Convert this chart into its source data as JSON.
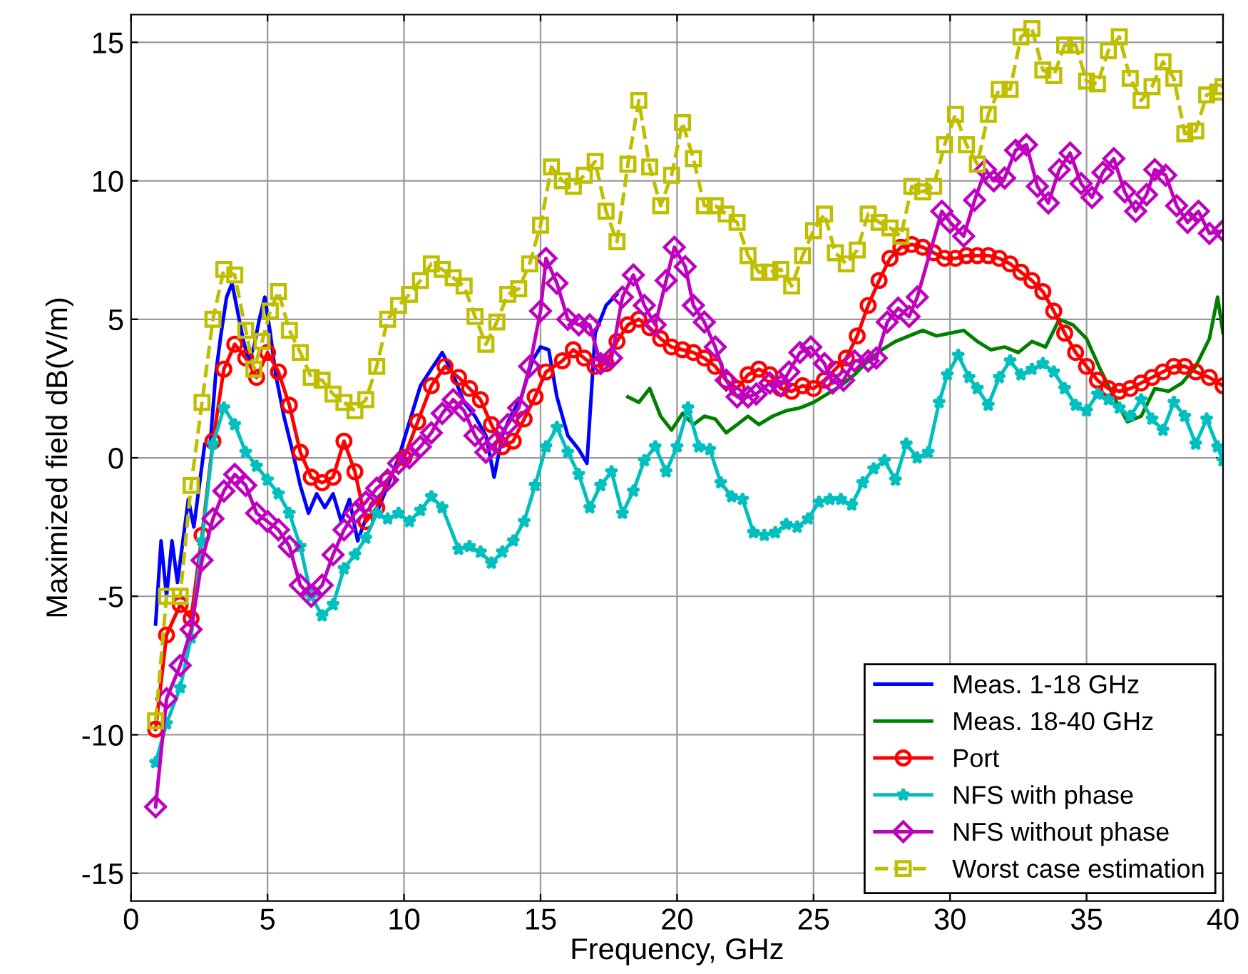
{
  "chart_data": {
    "type": "line",
    "xlabel": "Frequency, GHz",
    "ylabel": "Maximized field dB(V/m)",
    "xlim": [
      0,
      40
    ],
    "ylim": [
      -16,
      16
    ],
    "xticks": [
      0,
      5,
      10,
      15,
      20,
      25,
      30,
      35,
      40
    ],
    "yticks": [
      -15,
      -10,
      -5,
      0,
      5,
      10,
      15
    ],
    "grid": true,
    "legend": "bottom right",
    "series": [
      {
        "name": "Meas. 1-18 GHz",
        "color": "#0000ff",
        "marker": "none",
        "line_style": "solid",
        "x": [
          0.9,
          1.1,
          1.3,
          1.5,
          1.7,
          1.9,
          2.1,
          2.3,
          2.5,
          2.7,
          2.9,
          3.1,
          3.3,
          3.5,
          3.7,
          3.9,
          4.1,
          4.3,
          4.5,
          4.7,
          4.9,
          5.1,
          5.3,
          5.6,
          5.9,
          6.2,
          6.5,
          6.8,
          7.1,
          7.4,
          7.7,
          8.0,
          8.3,
          8.6,
          9.0,
          9.4,
          9.8,
          10.2,
          10.6,
          11.0,
          11.4,
          11.8,
          12.2,
          12.6,
          13.0,
          13.3,
          13.6,
          13.9,
          14.3,
          14.7,
          15.0,
          15.3,
          15.6,
          16.0,
          16.4,
          16.7,
          17.0,
          17.4,
          17.8
        ],
        "values": [
          -6,
          -3,
          -5,
          -3,
          -4.5,
          -3,
          -1.5,
          -2.5,
          -1,
          0.5,
          0.5,
          3,
          4.5,
          5.8,
          6.3,
          5.3,
          4.3,
          3.5,
          4,
          5,
          5.8,
          4.5,
          3,
          1.5,
          0.3,
          -1,
          -2,
          -1.3,
          -1.8,
          -1.3,
          -2.3,
          -1.5,
          -3,
          -2.2,
          -2,
          -1,
          0,
          1.3,
          2.6,
          3.2,
          3.8,
          3,
          2,
          1.5,
          0.8,
          -0.7,
          0.8,
          1.5,
          2.2,
          3.5,
          4,
          3.9,
          2.2,
          0.8,
          0.3,
          -0.2,
          4.5,
          5.5,
          5.9
        ]
      },
      {
        "name": "Meas. 18-40 GHz",
        "color": "#008000",
        "marker": "none",
        "line_style": "solid",
        "x": [
          18.2,
          18.6,
          19.0,
          19.4,
          19.8,
          20.2,
          20.6,
          21.0,
          21.4,
          21.8,
          22.2,
          22.6,
          23.0,
          23.5,
          24.0,
          24.5,
          25.0,
          25.5,
          26.0,
          26.5,
          27.0,
          27.5,
          28.0,
          28.5,
          29.0,
          29.5,
          30.0,
          30.5,
          31.0,
          31.5,
          32.0,
          32.5,
          33.0,
          33.5,
          34.0,
          34.5,
          35.0,
          35.5,
          36.0,
          36.5,
          37.0,
          37.5,
          38.0,
          38.5,
          39.0,
          39.5,
          39.8,
          40.0
        ],
        "values": [
          2.2,
          2,
          2.5,
          1.5,
          1,
          1.6,
          1.2,
          1.5,
          1.4,
          0.9,
          1.2,
          1.5,
          1.2,
          1.5,
          1.7,
          1.8,
          2,
          2.3,
          2.6,
          3,
          3.5,
          3.9,
          4.2,
          4.4,
          4.6,
          4.4,
          4.5,
          4.6,
          4.2,
          3.9,
          4,
          3.8,
          4.2,
          4,
          5,
          4.8,
          4.3,
          3.2,
          2.2,
          1.3,
          1.5,
          2.5,
          2.4,
          2.7,
          3.3,
          4.3,
          5.8,
          4.5
        ]
      },
      {
        "name": "Port",
        "color": "#ff0000",
        "marker": "circle",
        "line_style": "solid",
        "x": [
          0.9,
          1.3,
          1.8,
          2.2,
          2.6,
          3.0,
          3.4,
          3.8,
          4.2,
          4.6,
          5.0,
          5.4,
          5.8,
          6.2,
          6.6,
          7.0,
          7.4,
          7.8,
          8.2,
          8.6,
          9.0,
          9.4,
          10.0,
          10.5,
          11.0,
          11.5,
          12.0,
          12.4,
          12.8,
          13.2,
          13.6,
          14.0,
          14.4,
          14.8,
          15.2,
          15.8,
          16.2,
          16.6,
          17.0,
          17.4,
          17.8,
          18.2,
          18.6,
          19.0,
          19.4,
          19.8,
          20.2,
          20.6,
          21.0,
          21.4,
          21.8,
          22.2,
          22.6,
          23.0,
          23.4,
          23.8,
          24.2,
          24.6,
          25.0,
          25.4,
          25.8,
          26.2,
          26.6,
          27.0,
          27.4,
          27.8,
          28.2,
          28.6,
          29.0,
          29.4,
          29.8,
          30.2,
          30.6,
          31.0,
          31.4,
          31.8,
          32.2,
          32.6,
          33.0,
          33.4,
          33.8,
          34.2,
          34.6,
          35.0,
          35.4,
          35.8,
          36.2,
          36.6,
          37.0,
          37.4,
          37.8,
          38.2,
          38.6,
          39.0,
          39.5,
          40.0
        ],
        "values": [
          -9.8,
          -6.4,
          -5.3,
          -5.8,
          -2.8,
          0.6,
          3.2,
          4.1,
          3.6,
          2.9,
          3.8,
          3.1,
          1.9,
          0.2,
          -0.7,
          -0.9,
          -0.7,
          0.6,
          -0.5,
          -2.3,
          -1.8,
          -0.8,
          0,
          1.3,
          2.6,
          3.3,
          2.9,
          2.5,
          2.1,
          1.2,
          0.4,
          0.6,
          1.4,
          2.2,
          3.1,
          3.5,
          3.9,
          3.6,
          3.3,
          3.4,
          4.2,
          4.8,
          5,
          4.7,
          4.3,
          4,
          3.9,
          3.8,
          3.6,
          3.3,
          2.8,
          2.5,
          3,
          3.2,
          3,
          2.5,
          2.4,
          2.6,
          2.5,
          2.8,
          3.2,
          3.6,
          4.4,
          5.5,
          6.4,
          7.2,
          7.6,
          7.7,
          7.6,
          7.4,
          7.2,
          7.2,
          7.3,
          7.3,
          7.3,
          7.2,
          7,
          6.7,
          6.4,
          6,
          5.3,
          4.5,
          3.8,
          3.3,
          2.8,
          2.5,
          2.4,
          2.5,
          2.7,
          2.9,
          3.1,
          3.3,
          3.3,
          3.1,
          2.9,
          2.6
        ]
      },
      {
        "name": "NFS with phase",
        "color": "#00bfbf",
        "marker": "star",
        "line_style": "solid",
        "x": [
          0.9,
          1.3,
          1.8,
          2.2,
          2.6,
          3.0,
          3.4,
          3.8,
          4.2,
          4.6,
          5.0,
          5.4,
          5.8,
          6.2,
          6.6,
          7.0,
          7.4,
          7.8,
          8.2,
          8.6,
          9.0,
          9.4,
          9.8,
          10.2,
          10.6,
          11.0,
          11.4,
          12.0,
          12.4,
          12.8,
          13.2,
          13.6,
          14.0,
          14.4,
          14.8,
          15.2,
          15.6,
          16.0,
          16.4,
          16.8,
          17.2,
          17.6,
          18.0,
          18.4,
          18.8,
          19.2,
          19.6,
          20.0,
          20.4,
          20.8,
          21.2,
          21.6,
          22.0,
          22.4,
          22.8,
          23.2,
          23.6,
          24.0,
          24.4,
          24.8,
          25.2,
          25.6,
          26.0,
          26.4,
          26.8,
          27.2,
          27.6,
          28.0,
          28.4,
          28.8,
          29.2,
          29.6,
          29.9,
          30.3,
          30.7,
          31.0,
          31.4,
          31.8,
          32.2,
          32.6,
          33.0,
          33.4,
          33.8,
          34.2,
          34.6,
          35.0,
          35.4,
          35.8,
          36.2,
          36.6,
          37.0,
          37.4,
          37.8,
          38.2,
          38.6,
          39.0,
          39.4,
          39.8,
          40.0
        ],
        "values": [
          -11,
          -9.6,
          -8.3,
          -6.5,
          -3,
          0.5,
          1.8,
          1.2,
          0.2,
          -0.3,
          -0.8,
          -1.3,
          -2,
          -3.2,
          -5,
          -5.7,
          -5.3,
          -4,
          -3.5,
          -2.9,
          -2,
          -2.2,
          -2,
          -2.3,
          -1.9,
          -1.4,
          -1.8,
          -3.3,
          -3.2,
          -3.4,
          -3.8,
          -3.4,
          -3,
          -2.3,
          -1,
          0.4,
          1.1,
          0.2,
          -0.6,
          -1.8,
          -1,
          -0.5,
          -2,
          -1.2,
          -0.1,
          0.4,
          -0.5,
          0.4,
          1.8,
          0.4,
          0.3,
          -0.9,
          -1.4,
          -1.5,
          -2.7,
          -2.8,
          -2.7,
          -2.4,
          -2.5,
          -2.2,
          -1.6,
          -1.5,
          -1.5,
          -1.7,
          -0.9,
          -0.4,
          -0.1,
          -0.8,
          0.5,
          0,
          0.2,
          2,
          3,
          3.7,
          2.9,
          2.5,
          1.9,
          2.9,
          3.5,
          3,
          3.2,
          3.4,
          3.1,
          2.5,
          1.9,
          1.7,
          2.3,
          2.1,
          1.8,
          1.5,
          2.1,
          1.4,
          1,
          2,
          1.5,
          0.5,
          1.4,
          0.4,
          -0.1
        ]
      },
      {
        "name": "NFS without phase",
        "color": "#bf00bf",
        "marker": "diamond",
        "line_style": "solid",
        "x": [
          0.9,
          1.3,
          1.8,
          2.2,
          2.6,
          3.0,
          3.4,
          3.8,
          4.2,
          4.6,
          5.0,
          5.4,
          5.8,
          6.2,
          6.6,
          7.0,
          7.4,
          7.8,
          8.2,
          8.6,
          9.0,
          9.4,
          9.8,
          10.2,
          10.6,
          11.0,
          11.4,
          11.8,
          12.2,
          12.6,
          13.0,
          13.4,
          13.8,
          14.2,
          14.6,
          15.0,
          15.2,
          15.6,
          16.0,
          16.4,
          16.8,
          17.2,
          17.6,
          18.0,
          18.4,
          18.8,
          19.2,
          19.6,
          19.9,
          20.3,
          20.6,
          21.0,
          21.4,
          21.8,
          22.2,
          22.6,
          22.9,
          23.4,
          23.8,
          24.1,
          24.5,
          24.9,
          25.4,
          25.7,
          26.1,
          26.5,
          27.0,
          27.3,
          27.7,
          28.1,
          28.5,
          28.8,
          29.7,
          30.0,
          30.5,
          30.9,
          31.3,
          31.6,
          32.0,
          32.4,
          32.8,
          33.2,
          33.6,
          34.0,
          34.4,
          34.8,
          35.2,
          35.6,
          36.0,
          36.4,
          36.8,
          37.2,
          37.5,
          37.9,
          38.3,
          38.7,
          39.1,
          39.5,
          40.0
        ],
        "values": [
          -12.6,
          -8.7,
          -7.5,
          -6.2,
          -3.7,
          -2.2,
          -1.2,
          -0.6,
          -1,
          -2,
          -2.3,
          -2.6,
          -3.2,
          -4.6,
          -5,
          -4.6,
          -3.5,
          -2.6,
          -2,
          -1.6,
          -1.1,
          -0.8,
          -0.2,
          0,
          0.4,
          0.9,
          1.6,
          2.1,
          1.7,
          0.8,
          0.2,
          0.6,
          1.2,
          1.8,
          3.3,
          5.3,
          7.2,
          6.3,
          5,
          4.8,
          4.8,
          3.4,
          3.6,
          5.8,
          6.6,
          5.5,
          4.8,
          6.4,
          7.6,
          6.9,
          5.5,
          4.9,
          4,
          2.8,
          2.2,
          2.2,
          2.3,
          2.7,
          2.6,
          3.1,
          3.8,
          4,
          3.4,
          2.7,
          2.8,
          3.5,
          3.5,
          3.6,
          4.9,
          5.4,
          5.1,
          5.8,
          8.9,
          8.5,
          8,
          9.3,
          10.4,
          10,
          10.1,
          11.1,
          11.3,
          9.8,
          9.2,
          10.4,
          11,
          9.9,
          9.4,
          10.3,
          10.8,
          9.6,
          8.9,
          9.5,
          10.4,
          10.2,
          9.1,
          8.5,
          8.9,
          8.1,
          8.2
        ]
      },
      {
        "name": "Worst case estimation",
        "color": "#bfbf00",
        "marker": "square",
        "line_style": "dashed",
        "x": [
          0.9,
          1.3,
          1.8,
          2.2,
          2.6,
          3.0,
          3.4,
          3.8,
          4.2,
          4.5,
          4.8,
          5.1,
          5.4,
          5.8,
          6.2,
          6.6,
          7.0,
          7.4,
          7.8,
          8.2,
          8.6,
          9.0,
          9.4,
          9.8,
          10.2,
          10.6,
          11.0,
          11.4,
          11.8,
          12.2,
          12.6,
          13.0,
          13.4,
          13.8,
          14.2,
          14.6,
          15.0,
          15.4,
          15.8,
          16.2,
          16.6,
          17.0,
          17.4,
          17.8,
          18.2,
          18.6,
          19.0,
          19.4,
          19.8,
          20.2,
          20.6,
          21.0,
          21.4,
          21.8,
          22.2,
          22.6,
          23.0,
          23.4,
          23.8,
          24.2,
          24.6,
          25.0,
          25.4,
          25.8,
          26.2,
          26.6,
          27.0,
          27.4,
          27.8,
          28.2,
          28.6,
          29.0,
          29.4,
          29.8,
          30.2,
          30.6,
          31.0,
          31.4,
          31.8,
          32.2,
          32.6,
          33.0,
          33.4,
          33.8,
          34.2,
          34.6,
          35.0,
          35.4,
          35.8,
          36.2,
          36.6,
          37.0,
          37.4,
          37.8,
          38.2,
          38.6,
          39.0,
          39.4,
          39.8,
          40.0
        ],
        "values": [
          -9.5,
          -5,
          -5,
          -1,
          2,
          5,
          6.8,
          6.6,
          4.6,
          3.2,
          4.2,
          5.3,
          6,
          4.6,
          3.8,
          2.9,
          2.8,
          2.3,
          2,
          1.7,
          2.1,
          3.3,
          5,
          5.5,
          5.9,
          6.4,
          7,
          6.8,
          6.5,
          6.2,
          5.1,
          4.1,
          4.9,
          5.9,
          6.1,
          7,
          8.4,
          10.5,
          10,
          9.8,
          10.2,
          10.7,
          8.9,
          7.8,
          10.6,
          12.9,
          10.5,
          9.1,
          10.2,
          12.1,
          10.8,
          9.1,
          9.1,
          8.8,
          8.5,
          7.3,
          6.7,
          6.7,
          6.8,
          6.2,
          7.3,
          8.2,
          8.8,
          7.4,
          7,
          7.5,
          8.8,
          8.5,
          8.3,
          8,
          9.8,
          9.6,
          9.8,
          11.3,
          12.4,
          11.3,
          10.6,
          12.4,
          13.3,
          13.3,
          15.2,
          15.5,
          14,
          13.8,
          14.9,
          14.9,
          13.6,
          13.5,
          14.7,
          15.2,
          13.7,
          12.9,
          13.4,
          14.3,
          13.7,
          11.7,
          11.8,
          13.1,
          13.2,
          13.4
        ]
      }
    ]
  }
}
